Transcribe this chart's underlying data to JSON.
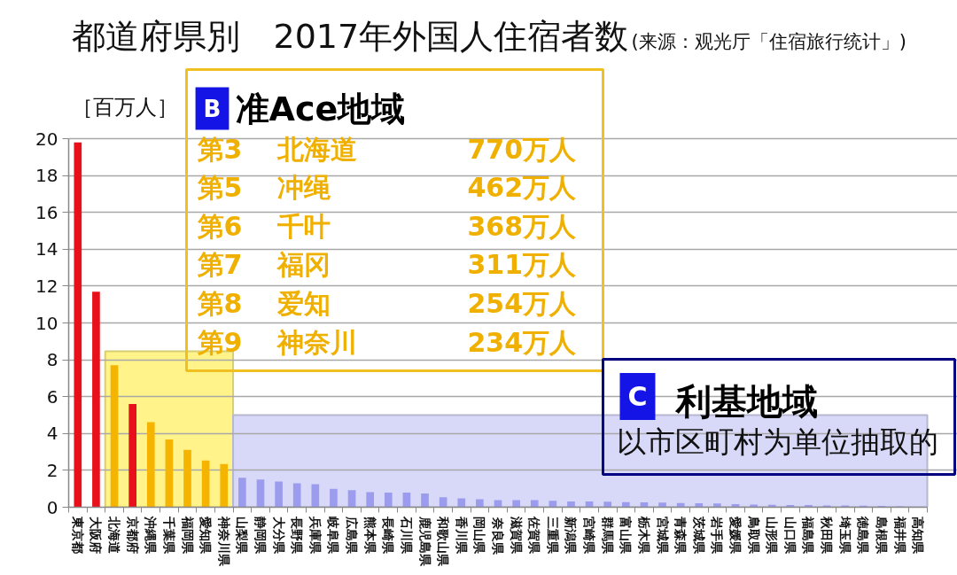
{
  "chart_data": {
    "type": "bar",
    "title": "都道府県別　2017年外国人住宿者数",
    "ylabel": "［百万人］",
    "categories": [
      "東京都",
      "大阪府",
      "北海道",
      "京都府",
      "沖縄県",
      "千葉県",
      "福岡県",
      "愛知県",
      "神奈川県",
      "山梨県",
      "静岡県",
      "大分県",
      "長野県",
      "兵庫県",
      "岐阜県",
      "広島県",
      "熊本県",
      "長崎県",
      "石川県",
      "鹿児島県",
      "和歌山県",
      "香川県",
      "岡山県",
      "奈良県",
      "滋賀県",
      "佐賀県",
      "三重県",
      "新潟県",
      "宮崎県",
      "群馬県",
      "富山県",
      "栃木県",
      "宮城県",
      "青森県",
      "茨城県",
      "岩手県",
      "愛媛県",
      "鳥取県",
      "山形県",
      "山口県",
      "福島県",
      "秋田県",
      "埼玉県",
      "徳島県",
      "島根県",
      "福井県",
      "高知県"
    ],
    "values": [
      19.8,
      11.7,
      7.7,
      5.6,
      4.62,
      3.68,
      3.11,
      2.54,
      2.34,
      1.6,
      1.5,
      1.4,
      1.3,
      1.25,
      1.0,
      0.93,
      0.82,
      0.79,
      0.79,
      0.75,
      0.54,
      0.48,
      0.43,
      0.38,
      0.38,
      0.38,
      0.35,
      0.31,
      0.31,
      0.3,
      0.28,
      0.27,
      0.25,
      0.23,
      0.22,
      0.2,
      0.17,
      0.15,
      0.13,
      0.12,
      0.12,
      0.1,
      0.1,
      0.08,
      0.07,
      0.05,
      0.03
    ],
    "colors": [
      "#e8101a",
      "#e8101a",
      "#f5b400",
      "#e8101a",
      "#f5b400",
      "#f5b400",
      "#f5b400",
      "#f5b400",
      "#f5b400",
      "#9c9cee",
      "#9c9cee",
      "#9c9cee",
      "#9c9cee",
      "#9c9cee",
      "#9c9cee",
      "#9c9cee",
      "#9c9cee",
      "#9c9cee",
      "#9c9cee",
      "#9c9cee",
      "#9c9cee",
      "#9c9cee",
      "#9c9cee",
      "#9c9cee",
      "#9c9cee",
      "#9c9cee",
      "#9c9cee",
      "#9c9cee",
      "#9c9cee",
      "#9c9cee",
      "#9c9cee",
      "#9c9cee",
      "#9c9cee",
      "#9c9cee",
      "#9c9cee",
      "#9c9cee",
      "#9c9cee",
      "#9c9cee",
      "#9c9cee",
      "#9c9cee",
      "#9c9cee",
      "#9c9cee",
      "#9c9cee",
      "#9c9cee",
      "#9c9cee",
      "#9c9cee",
      "#9c9cee"
    ],
    "ylim": [
      0,
      20
    ],
    "yticks": [
      0,
      2,
      4,
      6,
      8,
      10,
      12,
      14,
      16,
      18,
      20
    ],
    "grid": "y",
    "bands": [
      {
        "axis": "x",
        "from": "北海道",
        "to": "神奈川県",
        "color": "#fff38a"
      },
      {
        "axis": "x",
        "from": "山梨県",
        "to": "高知県",
        "label": "利基地域",
        "color": "#d8d8f8"
      }
    ],
    "annotations": [
      "(来源：观光厅「住宿旅行统计」)",
      "B",
      "准Ace地域",
      "第3　北海道　770万人",
      "第5　冲绳　462万人",
      "第6　千叶　368万人",
      "第7　福冈　311万人",
      "第8　爱知　254万人",
      "第9　神奈川　234万人",
      "C",
      "以市区町村为单位抽取的"
    ]
  }
}
